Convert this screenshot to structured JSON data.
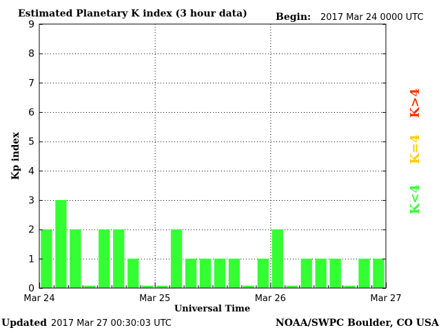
{
  "header": {
    "title": "Estimated Planetary K index (3 hour data)",
    "begin_label": "Begin:",
    "begin_value": "2017 Mar 24 0000 UTC"
  },
  "footer": {
    "updated_label": "Updated",
    "updated_value": "2017 Mar 27 00:30:03 UTC",
    "source": "NOAA/SWPC Boulder, CO USA"
  },
  "legend": {
    "high": {
      "label": "K>4",
      "color": "#ff3300"
    },
    "mid": {
      "label": "K=4",
      "color": "#ffcc00"
    },
    "low": {
      "label": "K<4",
      "color": "#33ff33"
    }
  },
  "chart_data": {
    "type": "bar",
    "title": "Estimated Planetary K index (3 hour data)",
    "xlabel": "Universal Time",
    "ylabel": "Kp index",
    "ylim": [
      0,
      9
    ],
    "yticks": [
      "0",
      "1",
      "2",
      "3",
      "4",
      "5",
      "6",
      "7",
      "8",
      "9"
    ],
    "xticks": [
      "Mar 24",
      "Mar 25",
      "Mar 26",
      "Mar 27"
    ],
    "grid": true,
    "bar_color": "#33ff33",
    "values": [
      2,
      3,
      2,
      0,
      2,
      2,
      1,
      0,
      0,
      2,
      1,
      1,
      1,
      1,
      0,
      1,
      2,
      0,
      1,
      1,
      1,
      0,
      1,
      1
    ]
  }
}
